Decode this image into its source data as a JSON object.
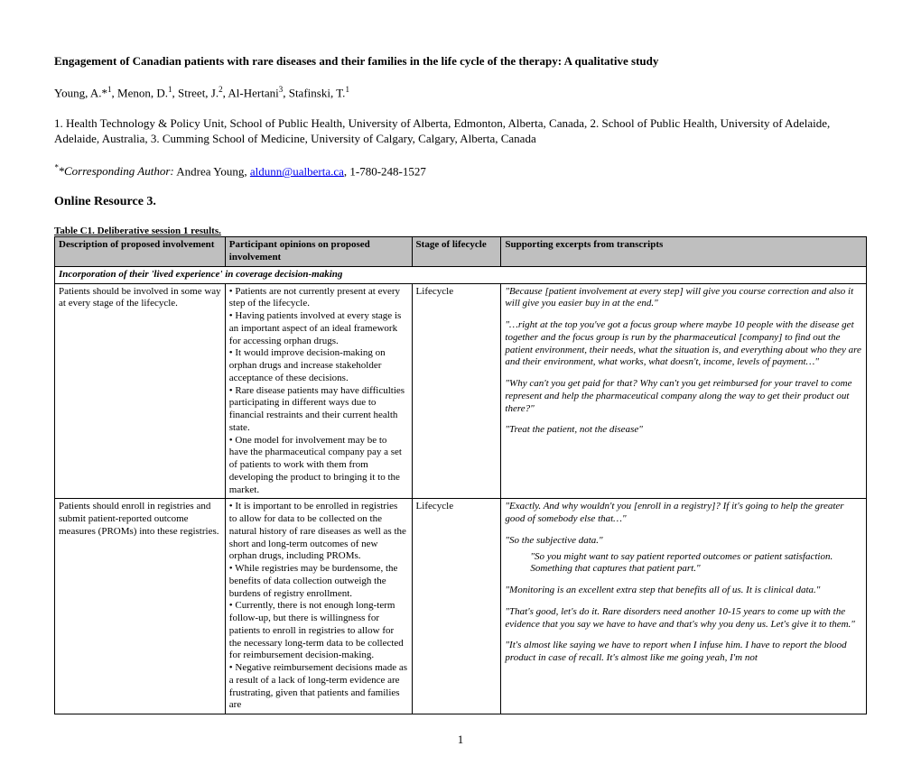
{
  "title": "Engagement of Canadian patients with rare diseases and their families in the life cycle of the therapy: A qualitative study",
  "authors_html": "Young, A.*<sup>1</sup>, Menon, D.<sup>1</sup>, Street, J.<sup>2</sup>, Al-Hertani<sup>3</sup>, Stafinski, T.<sup>1</sup>",
  "affiliations": "1. Health Technology & Policy Unit, School of Public Health, University of Alberta, Edmonton, Alberta, Canada, 2. School of Public Health, University of Adelaide, Adelaide, Australia, 3. Cumming School of Medicine, University of Calgary, Calgary, Alberta, Canada",
  "corresponding_label": "*Corresponding Author:",
  "corresponding_name": " Andrea Young, ",
  "corresponding_email": "aldunn@ualberta.ca",
  "corresponding_phone": ", 1-780-248-1527",
  "resource_heading": "Online Resource 3.",
  "table_caption": "Table C1. Deliberative session 1 results.",
  "headers": {
    "c1": "Description of proposed involvement",
    "c2": "Participant opinions on proposed involvement",
    "c3": "Stage of lifecycle",
    "c4": "Supporting excerpts from transcripts"
  },
  "section_row": "Incorporation of their 'lived experience' in coverage decision-making",
  "row1": {
    "desc": "Patients should be involved in some way at every stage of the lifecycle.",
    "opinions": "• Patients are not currently present at every step of the lifecycle.\n• Having patients involved at every stage is an important aspect of an ideal framework for accessing orphan drugs.\n• It would improve decision-making on orphan drugs and increase stakeholder acceptance of these decisions.\n• Rare disease patients may have difficulties participating in different ways due to financial restraints and their current health state.\n• One model for involvement may be to have the pharmaceutical company pay a set of patients to work with them from developing the product to bringing it to the market.",
    "stage": "Lifecycle",
    "excerpts": [
      "\"Because [patient involvement at every step] will give you course correction and also it will give you easier buy in at the end.\"",
      "\"…right at the top you've got a focus group where maybe 10 people with the disease get together and the focus group is run by the pharmaceutical [company] to find out the patient environment, their needs, what the situation is, and everything about who they are and their environment, what works, what doesn't, income, levels of payment…\"",
      "\"Why can't you get paid for that? Why can't you get reimbursed for your travel to come represent and help the pharmaceutical company along the way to get their product out there?\"",
      "\"Treat the patient, not the disease\""
    ]
  },
  "row2": {
    "desc": "Patients should enroll in registries and submit patient-reported outcome measures (PROMs) into these registries.",
    "opinions": "• It is important to be enrolled in registries to allow for data to be collected on the natural history of rare diseases as well as the short and long-term outcomes of new orphan drugs, including PROMs.\n• While registries may be burdensome, the benefits of data collection outweigh the burdens of registry enrollment.\n• Currently, there is not enough long-term follow-up, but there is willingness for patients to enroll in registries to allow for the necessary long-term data to be collected for reimbursement decision-making.\n• Negative reimbursement decisions made as a result of a lack of long-term evidence are frustrating, given that patients and families are",
    "stage": "Lifecycle",
    "excerpts": [
      "\"Exactly. And why wouldn't you [enroll in a registry]? If it's going to help the greater good of somebody else that…\"",
      "\"So the subjective data.\"",
      "INDENT\"So you might want to say patient reported outcomes or patient satisfaction. Something that captures that patient part.\"",
      "\"Monitoring is an excellent extra step that benefits all of us. It is clinical data.\"",
      "\"That's good, let's do it. Rare disorders need another 10-15 years to come up with the evidence that you say we have to have and that's why you deny us. Let's give it to them.\"",
      "\"It's almost like saying we have to report when I infuse him. I have to report the blood product in case of recall. It's almost like me going yeah, I'm not"
    ]
  },
  "page_number": "1"
}
